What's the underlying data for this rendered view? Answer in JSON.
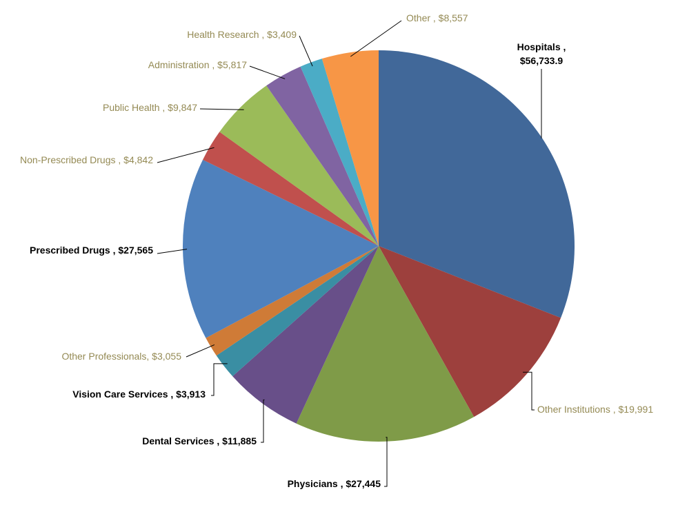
{
  "chart_data": {
    "type": "pie",
    "start": "top",
    "direction": "clockwise",
    "slices": [
      {
        "name": "Hospitals",
        "value": 56733.9,
        "label": "Hospitals ,",
        "value_label": "$56,733.9",
        "color": "#416899",
        "bold": true
      },
      {
        "name": "Other Institutions",
        "value": 19991,
        "label": "Other Institutions ,  $19,991",
        "color": "#9D403D",
        "bold": false
      },
      {
        "name": "Physicians",
        "value": 27445,
        "label": "Physicians ,  $27,445",
        "color": "#7F9B48",
        "bold": true
      },
      {
        "name": "Dental Services",
        "value": 11885,
        "label": "Dental Services ,  $11,885",
        "color": "#684F89",
        "bold": true
      },
      {
        "name": "Vision Care Services",
        "value": 3913,
        "label": "Vision Care Services ,  $3,913",
        "color": "#3A8EA3",
        "bold": true
      },
      {
        "name": "Other Professionals",
        "value": 3055,
        "label": "Other Professionals,  $3,055",
        "color": "#CF7B37",
        "bold": false
      },
      {
        "name": "Prescribed Drugs",
        "value": 27565,
        "label": "Prescribed Drugs ,  $27,565",
        "color": "#4F81BD",
        "bold": true
      },
      {
        "name": "Non-Prescribed Drugs",
        "value": 4842,
        "label": "Non-Prescribed Drugs ,  $4,842",
        "color": "#C0504D",
        "bold": false
      },
      {
        "name": "Public Health",
        "value": 9847,
        "label": "Public Health ,  $9,847",
        "color": "#9BBB59",
        "bold": false
      },
      {
        "name": "Administration",
        "value": 5817,
        "label": "Administration ,  $5,817",
        "color": "#8064A2",
        "bold": false
      },
      {
        "name": "Health Research",
        "value": 3409,
        "label": "Health Research ,  $3,409",
        "color": "#4BACC6",
        "bold": false
      },
      {
        "name": "Other",
        "value": 8557,
        "label": "Other ,  $8,557",
        "color": "#F79646",
        "bold": false
      }
    ]
  }
}
